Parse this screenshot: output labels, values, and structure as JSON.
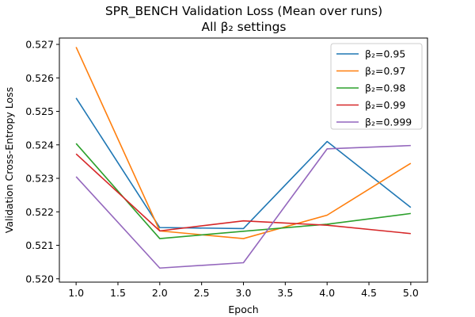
{
  "chart_data": {
    "type": "line",
    "title": "SPR_BENCH Validation Loss (Mean over runs)",
    "subtitle": "All β₂ settings",
    "xlabel": "Epoch",
    "ylabel": "Validation Cross-Entropy Loss",
    "x": [
      1.0,
      2.0,
      3.0,
      4.0,
      5.0
    ],
    "xlim": [
      0.8,
      5.2
    ],
    "ylim": [
      0.5199,
      0.52719
    ],
    "xticks": [
      "1.0",
      "1.5",
      "2.0",
      "2.5",
      "3.0",
      "3.5",
      "4.0",
      "4.5",
      "5.0"
    ],
    "yticks": [
      "0.520",
      "0.521",
      "0.522",
      "0.523",
      "0.524",
      "0.525",
      "0.526",
      "0.527"
    ],
    "grid": false,
    "legend_position": "top-right",
    "series": [
      {
        "name": "β₂=0.95",
        "color": "#1f77b4",
        "values": [
          0.5254,
          0.52153,
          0.5215,
          0.5241,
          0.52213
        ]
      },
      {
        "name": "β₂=0.97",
        "color": "#ff7f0e",
        "values": [
          0.52692,
          0.52143,
          0.5212,
          0.5219,
          0.52345
        ]
      },
      {
        "name": "β₂=0.98",
        "color": "#2ca02c",
        "values": [
          0.52404,
          0.5212,
          0.52142,
          0.52163,
          0.52195
        ]
      },
      {
        "name": "β₂=0.99",
        "color": "#d62728",
        "values": [
          0.52373,
          0.52143,
          0.52173,
          0.5216,
          0.52135
        ]
      },
      {
        "name": "β₂=0.999",
        "color": "#9467bd",
        "values": [
          0.52305,
          0.52032,
          0.52048,
          0.52388,
          0.52398
        ]
      }
    ]
  }
}
